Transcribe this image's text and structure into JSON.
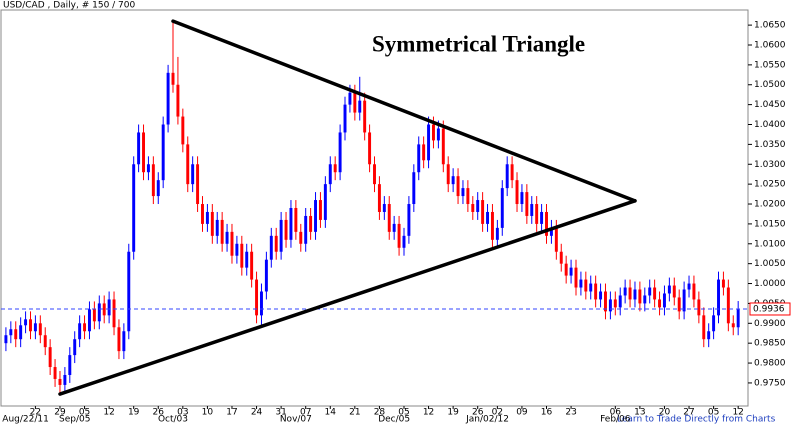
{
  "chart_data": {
    "type": "candlestick",
    "title": "USD/CAD , Daily, # 150 / 700",
    "annotation": "Symmetrical Triangle",
    "footer": "Learn to Trade Directly from Charts",
    "up_color": "#0000ff",
    "down_color": "#ff0000",
    "open": [
      0.985,
      0.987,
      0.9885,
      0.986,
      0.9895,
      0.991,
      0.988,
      0.99,
      0.987,
      0.984,
      0.979,
      0.976,
      0.9745,
      0.977,
      0.982,
      0.986,
      0.99,
      0.988,
      0.9935,
      0.9905,
      0.995,
      0.992,
      0.996,
      0.989,
      0.983,
      0.988,
      1.008,
      1.03,
      1.038,
      1.028,
      1.03,
      1.022,
      1.026,
      1.04,
      1.053,
      1.05,
      1.042,
      1.035,
      1.025,
      1.03,
      1.02,
      1.015,
      1.018,
      1.012,
      1.016,
      1.01,
      1.013,
      1.007,
      1.01,
      1.004,
      1.008,
      1.001,
      0.992,
      0.998,
      1.006,
      1.012,
      1.008,
      1.016,
      1.011,
      1.019,
      1.013,
      1.01,
      1.017,
      1.013,
      1.021,
      1.016,
      1.025,
      1.03,
      1.028,
      1.038,
      1.045,
      1.048,
      1.043,
      1.046,
      1.038,
      1.03,
      1.025,
      1.018,
      1.02,
      1.013,
      1.015,
      1.009,
      1.012,
      1.02,
      1.028,
      1.035,
      1.031,
      1.04,
      1.036,
      1.039,
      1.03,
      1.025,
      1.027,
      1.022,
      1.024,
      1.02,
      1.018,
      1.021,
      1.015,
      1.018,
      1.011,
      1.014,
      1.024,
      1.03,
      1.026,
      1.02,
      1.023,
      1.017,
      1.02,
      1.015,
      1.018,
      1.012,
      1.014,
      1.008,
      1.005,
      1.002,
      1.004,
      0.999,
      1.001,
      0.998,
      1.0,
      0.996,
      0.998,
      0.993,
      0.996,
      0.994,
      0.997,
      0.999,
      0.996,
      0.9985,
      0.995,
      0.997,
      0.999,
      0.996,
      0.994,
      0.9975,
      0.9995,
      0.9965,
      0.993,
      0.9985,
      1.0,
      0.996,
      0.992,
      0.986,
      0.988,
      0.992,
      1.001,
      0.999,
      0.99,
      0.989
    ],
    "high": [
      0.989,
      0.9905,
      0.9905,
      0.9915,
      0.993,
      0.993,
      0.992,
      0.992,
      0.989,
      0.986,
      0.981,
      0.978,
      0.979,
      0.984,
      0.988,
      0.992,
      0.992,
      0.9955,
      0.9955,
      0.997,
      0.997,
      0.998,
      0.998,
      0.991,
      0.99,
      1.01,
      1.032,
      1.04,
      1.04,
      1.032,
      1.032,
      1.028,
      1.042,
      1.055,
      1.066,
      1.057,
      1.044,
      1.037,
      1.032,
      1.032,
      1.022,
      1.02,
      1.02,
      1.018,
      1.018,
      1.015,
      1.015,
      1.012,
      1.012,
      1.01,
      1.01,
      1.003,
      1.0,
      1.008,
      1.014,
      1.014,
      1.018,
      1.018,
      1.021,
      1.021,
      1.015,
      1.019,
      1.019,
      1.023,
      1.023,
      1.027,
      1.032,
      1.032,
      1.04,
      1.047,
      1.05,
      1.05,
      1.052,
      1.048,
      1.04,
      1.032,
      1.027,
      1.022,
      1.022,
      1.017,
      1.017,
      1.014,
      1.022,
      1.03,
      1.037,
      1.037,
      1.042,
      1.042,
      1.041,
      1.041,
      1.032,
      1.029,
      1.029,
      1.026,
      1.026,
      1.022,
      1.023,
      1.023,
      1.02,
      1.02,
      1.016,
      1.026,
      1.032,
      1.032,
      1.028,
      1.025,
      1.025,
      1.022,
      1.022,
      1.02,
      1.02,
      1.016,
      1.016,
      1.01,
      1.007,
      1.006,
      1.006,
      1.003,
      1.003,
      1.002,
      1.002,
      1.0,
      1.0,
      0.998,
      0.998,
      0.999,
      1.001,
      1.001,
      1.0005,
      1.0005,
      0.999,
      1.001,
      1.001,
      0.998,
      0.9995,
      1.0015,
      1.0015,
      0.9985,
      1.0005,
      1.002,
      1.002,
      0.998,
      0.994,
      0.99,
      0.994,
      1.003,
      1.003,
      1.001,
      0.992,
      0.9956
    ],
    "low": [
      0.983,
      0.985,
      0.984,
      0.984,
      0.9875,
      0.986,
      0.986,
      0.985,
      0.982,
      0.977,
      0.974,
      0.9722,
      0.9725,
      0.975,
      0.98,
      0.984,
      0.986,
      0.986,
      0.9885,
      0.9885,
      0.99,
      0.99,
      0.987,
      0.981,
      0.981,
      0.986,
      1.006,
      1.028,
      1.026,
      1.026,
      1.02,
      1.02,
      1.024,
      1.038,
      1.048,
      1.04,
      1.033,
      1.023,
      1.023,
      1.018,
      1.013,
      1.013,
      1.01,
      1.01,
      1.008,
      1.008,
      1.005,
      1.005,
      1.002,
      1.002,
      0.999,
      0.99,
      0.9895,
      0.996,
      1.004,
      1.006,
      1.006,
      1.009,
      1.009,
      1.011,
      1.008,
      1.008,
      1.011,
      1.011,
      1.014,
      1.014,
      1.023,
      1.026,
      1.026,
      1.036,
      1.043,
      1.041,
      1.041,
      1.036,
      1.028,
      1.023,
      1.016,
      1.016,
      1.011,
      1.011,
      1.007,
      1.007,
      1.01,
      1.018,
      1.026,
      1.029,
      1.029,
      1.034,
      1.034,
      1.028,
      1.023,
      1.023,
      1.02,
      1.02,
      1.018,
      1.016,
      1.016,
      1.013,
      1.013,
      1.009,
      1.009,
      1.012,
      1.022,
      1.024,
      1.018,
      1.018,
      1.015,
      1.015,
      1.013,
      1.013,
      1.01,
      1.01,
      1.006,
      1.003,
      1.0,
      1.0,
      0.997,
      0.997,
      0.996,
      0.996,
      0.994,
      0.994,
      0.991,
      0.991,
      0.992,
      0.992,
      0.995,
      0.994,
      0.994,
      0.993,
      0.993,
      0.995,
      0.994,
      0.992,
      0.992,
      0.9955,
      0.9945,
      0.991,
      0.991,
      0.9965,
      0.994,
      0.99,
      0.984,
      0.984,
      0.986,
      0.99,
      0.997,
      0.988,
      0.987,
      0.987
    ],
    "close": [
      0.987,
      0.9885,
      0.986,
      0.9895,
      0.991,
      0.988,
      0.99,
      0.987,
      0.984,
      0.979,
      0.976,
      0.9745,
      0.977,
      0.982,
      0.986,
      0.99,
      0.988,
      0.9935,
      0.9905,
      0.995,
      0.992,
      0.996,
      0.989,
      0.983,
      0.988,
      1.008,
      1.03,
      1.038,
      1.028,
      1.03,
      1.022,
      1.026,
      1.04,
      1.053,
      1.05,
      1.042,
      1.035,
      1.025,
      1.03,
      1.02,
      1.015,
      1.018,
      1.012,
      1.016,
      1.01,
      1.013,
      1.007,
      1.01,
      1.004,
      1.008,
      1.001,
      0.992,
      0.998,
      1.006,
      1.012,
      1.008,
      1.016,
      1.011,
      1.019,
      1.013,
      1.01,
      1.017,
      1.013,
      1.021,
      1.016,
      1.025,
      1.03,
      1.028,
      1.038,
      1.045,
      1.048,
      1.043,
      1.046,
      1.038,
      1.03,
      1.025,
      1.018,
      1.02,
      1.013,
      1.015,
      1.009,
      1.012,
      1.02,
      1.028,
      1.035,
      1.031,
      1.04,
      1.036,
      1.039,
      1.03,
      1.025,
      1.027,
      1.022,
      1.024,
      1.02,
      1.018,
      1.021,
      1.015,
      1.018,
      1.011,
      1.014,
      1.024,
      1.03,
      1.026,
      1.02,
      1.023,
      1.017,
      1.02,
      1.015,
      1.018,
      1.012,
      1.014,
      1.008,
      1.005,
      1.002,
      1.004,
      0.999,
      1.001,
      0.998,
      1.0,
      0.996,
      0.998,
      0.993,
      0.996,
      0.994,
      0.997,
      0.999,
      0.996,
      0.9985,
      0.995,
      0.997,
      0.999,
      0.996,
      0.994,
      0.9975,
      0.9995,
      0.9965,
      0.993,
      0.9985,
      1.0,
      0.996,
      0.992,
      0.986,
      0.988,
      0.992,
      1.001,
      0.999,
      0.99,
      0.989,
      0.9936
    ],
    "xlim": [
      -1,
      151
    ],
    "xticks": [
      {
        "value": 6,
        "label": "22"
      },
      {
        "value": 11,
        "label": "29"
      },
      {
        "value": 16,
        "label": "05"
      },
      {
        "value": 21,
        "label": "12"
      },
      {
        "value": 26,
        "label": "19"
      },
      {
        "value": 31,
        "label": "26"
      },
      {
        "value": 36,
        "label": "03"
      },
      {
        "value": 41,
        "label": "10"
      },
      {
        "value": 46,
        "label": "17"
      },
      {
        "value": 51,
        "label": "24"
      },
      {
        "value": 56,
        "label": "31"
      },
      {
        "value": 61,
        "label": "07"
      },
      {
        "value": 66,
        "label": "14"
      },
      {
        "value": 71,
        "label": "21"
      },
      {
        "value": 76,
        "label": "28"
      },
      {
        "value": 81,
        "label": "05"
      },
      {
        "value": 86,
        "label": "12"
      },
      {
        "value": 91,
        "label": "19"
      },
      {
        "value": 96,
        "label": "26"
      },
      {
        "value": 100,
        "label": "02"
      },
      {
        "value": 105,
        "label": "09"
      },
      {
        "value": 110,
        "label": "16"
      },
      {
        "value": 115,
        "label": "23"
      },
      {
        "value": 124,
        "label": "06"
      },
      {
        "value": 129,
        "label": "13"
      },
      {
        "value": 134,
        "label": "20"
      },
      {
        "value": 139,
        "label": "27"
      },
      {
        "value": 144,
        "label": "05"
      },
      {
        "value": 149,
        "label": "12"
      }
    ],
    "xperiods": [
      {
        "value": 4,
        "label": "Aug/22/11"
      },
      {
        "value": 14,
        "label": "Sep/05"
      },
      {
        "value": 34,
        "label": "Oct/03"
      },
      {
        "value": 59,
        "label": "Nov/07"
      },
      {
        "value": 79,
        "label": "Dec/05"
      },
      {
        "value": 98,
        "label": "Jan/02/12"
      },
      {
        "value": 124,
        "label": "Feb/06"
      }
    ],
    "ylim": [
      0.9692,
      1.0688
    ],
    "yticks": [
      {
        "value": 0.975,
        "label": "0.9750"
      },
      {
        "value": 0.98,
        "label": "0.9800"
      },
      {
        "value": 0.985,
        "label": "0.9850"
      },
      {
        "value": 0.99,
        "label": "0.9900"
      },
      {
        "value": 0.995,
        "label": "0.9950"
      },
      {
        "value": 1.0,
        "label": "1.0000"
      },
      {
        "value": 1.005,
        "label": "1.0050"
      },
      {
        "value": 1.01,
        "label": "1.0100"
      },
      {
        "value": 1.015,
        "label": "1.0150"
      },
      {
        "value": 1.02,
        "label": "1.0200"
      },
      {
        "value": 1.025,
        "label": "1.0250"
      },
      {
        "value": 1.03,
        "label": "1.0300"
      },
      {
        "value": 1.035,
        "label": "1.0350"
      },
      {
        "value": 1.04,
        "label": "1.0400"
      },
      {
        "value": 1.045,
        "label": "1.0450"
      },
      {
        "value": 1.05,
        "label": "1.0500"
      },
      {
        "value": 1.055,
        "label": "1.0550"
      },
      {
        "value": 1.06,
        "label": "1.0600"
      },
      {
        "value": 1.065,
        "label": "1.0650"
      }
    ],
    "last_price": {
      "value": 0.9936,
      "label": "0.9936"
    },
    "trendlines": [
      {
        "x": [
          34,
          128
        ],
        "y": [
          1.066,
          1.0208
        ]
      },
      {
        "x": [
          11,
          128
        ],
        "y": [
          0.9722,
          1.0208
        ]
      }
    ]
  }
}
